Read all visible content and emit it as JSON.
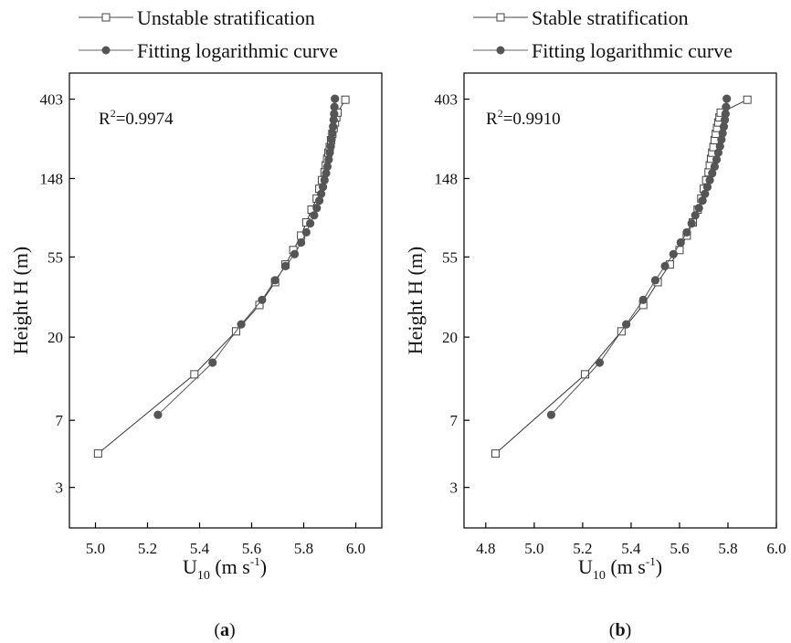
{
  "chart_data": [
    {
      "type": "line",
      "panel_label": "a",
      "annotation_prefix": "R",
      "annotation_sup": "2",
      "annotation_value": "=0.9974",
      "xlabel_main": "U",
      "xlabel_sub": "10",
      "xlabel_unit": " (m s",
      "xlabel_unit_sup": "-1",
      "xlabel_close": ")",
      "ylabel": "Height H (m)",
      "y_scale": "log",
      "xlim": [
        4.9,
        6.1
      ],
      "ylim": [
        1.8,
        560
      ],
      "x_ticks": [
        5.0,
        5.2,
        5.4,
        5.6,
        5.8,
        6.0
      ],
      "x_tick_labels": [
        "5.0",
        "5.2",
        "5.4",
        "5.6",
        "5.8",
        "6.0"
      ],
      "y_ticks": [
        3,
        7,
        20,
        55,
        148,
        403
      ],
      "y_tick_labels": [
        "3",
        "7",
        "20",
        "55",
        "148",
        "403"
      ],
      "legend": [
        {
          "name": "Unstable stratification",
          "marker": "open-square"
        },
        {
          "name": "Fitting logarithmic curve",
          "marker": "filled-circle"
        }
      ],
      "series": [
        {
          "name": "Unstable stratification",
          "x": [
            5.01,
            5.38,
            5.54,
            5.63,
            5.69,
            5.73,
            5.76,
            5.79,
            5.81,
            5.83,
            5.85,
            5.86,
            5.87,
            5.88,
            5.885,
            5.89,
            5.895,
            5.9,
            5.905,
            5.91,
            5.915,
            5.92,
            5.925,
            5.93,
            5.96
          ],
          "y": [
            4.6,
            12.5,
            21.5,
            30,
            40,
            50,
            60,
            72,
            85,
            100,
            115,
            130,
            145,
            160,
            175,
            190,
            205,
            220,
            240,
            260,
            280,
            300,
            320,
            340,
            400
          ]
        },
        {
          "name": "Fitting logarithmic curve",
          "x": [
            5.24,
            5.45,
            5.56,
            5.64,
            5.69,
            5.73,
            5.765,
            5.79,
            5.81,
            5.825,
            5.84,
            5.85,
            5.86,
            5.867,
            5.874,
            5.88,
            5.886,
            5.891,
            5.896,
            5.9,
            5.904,
            5.907,
            5.91,
            5.913,
            5.915,
            5.917,
            5.918,
            5.92
          ],
          "y": [
            7.5,
            14.5,
            23.5,
            32,
            41,
            49,
            57,
            66,
            75,
            84,
            93,
            102,
            112,
            122,
            133,
            145,
            158,
            172,
            188,
            205,
            222,
            242,
            262,
            285,
            310,
            335,
            365,
            405
          ]
        }
      ]
    },
    {
      "type": "line",
      "panel_label": "b",
      "annotation_prefix": "R",
      "annotation_sup": "2",
      "annotation_value": "=0.9910",
      "xlabel_main": "U",
      "xlabel_sub": "10",
      "xlabel_unit": " (m s",
      "xlabel_unit_sup": "-1",
      "xlabel_close": ")",
      "ylabel": "Height H (m)",
      "y_scale": "log",
      "xlim": [
        4.71,
        6.0
      ],
      "ylim": [
        1.8,
        560
      ],
      "x_ticks": [
        4.8,
        5.0,
        5.2,
        5.4,
        5.6,
        5.8,
        6.0
      ],
      "x_tick_labels": [
        "4.8",
        "5.0",
        "5.2",
        "5.4",
        "5.6",
        "5.8",
        "6.0"
      ],
      "y_ticks": [
        3,
        7,
        20,
        55,
        148,
        403
      ],
      "y_tick_labels": [
        "3",
        "7",
        "20",
        "55",
        "148",
        "403"
      ],
      "legend": [
        {
          "name": "Stable stratification",
          "marker": "open-square"
        },
        {
          "name": "Fitting logarithmic curve",
          "marker": "filled-circle"
        }
      ],
      "series": [
        {
          "name": "Stable stratification",
          "x": [
            4.84,
            5.21,
            5.36,
            5.45,
            5.51,
            5.56,
            5.6,
            5.63,
            5.655,
            5.675,
            5.69,
            5.7,
            5.71,
            5.72,
            5.725,
            5.73,
            5.735,
            5.74,
            5.745,
            5.75,
            5.755,
            5.76,
            5.765,
            5.77,
            5.88
          ],
          "y": [
            4.6,
            12.5,
            21.5,
            30,
            40,
            50,
            60,
            72,
            85,
            100,
            115,
            130,
            145,
            160,
            175,
            190,
            205,
            220,
            240,
            260,
            280,
            300,
            320,
            340,
            400
          ]
        },
        {
          "name": "Fitting logarithmic curve",
          "x": [
            5.07,
            5.27,
            5.38,
            5.45,
            5.5,
            5.54,
            5.575,
            5.605,
            5.63,
            5.65,
            5.665,
            5.68,
            5.695,
            5.705,
            5.715,
            5.725,
            5.735,
            5.745,
            5.753,
            5.76,
            5.767,
            5.773,
            5.778,
            5.783,
            5.787,
            5.79,
            5.792,
            5.795
          ],
          "y": [
            7.5,
            14.5,
            23.5,
            32,
            41,
            49,
            57,
            66,
            75,
            84,
            93,
            102,
            112,
            122,
            133,
            145,
            158,
            172,
            188,
            205,
            222,
            242,
            262,
            285,
            310,
            335,
            365,
            405
          ]
        }
      ]
    }
  ]
}
